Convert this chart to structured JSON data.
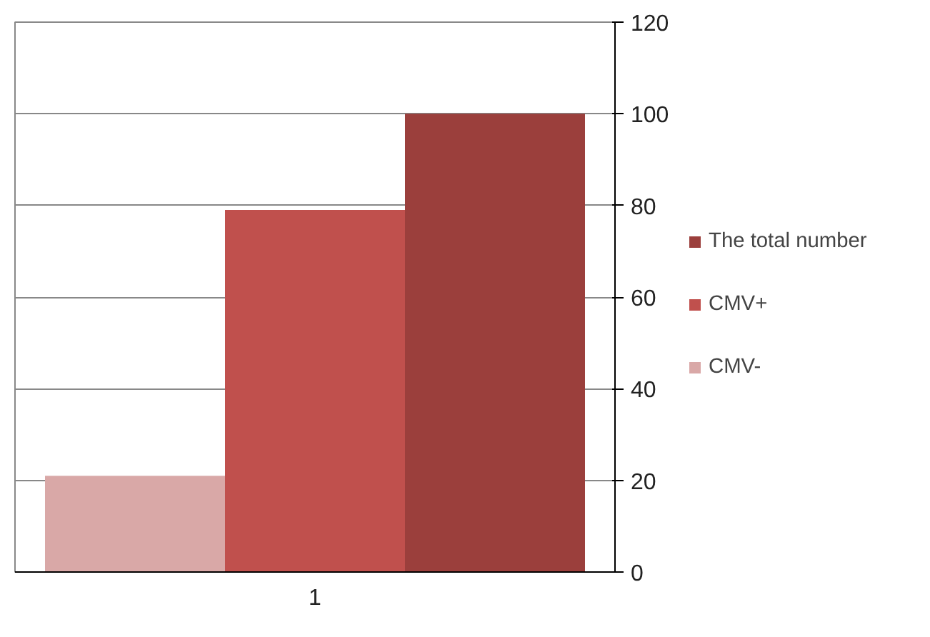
{
  "chart_data": {
    "type": "bar",
    "categories": [
      "1"
    ],
    "series": [
      {
        "name": "CMV-",
        "color": "#d9a8a7",
        "values": [
          21
        ]
      },
      {
        "name": "CMV+",
        "color": "#c0504d",
        "values": [
          79
        ]
      },
      {
        "name": "The total number",
        "color": "#9b3f3c",
        "values": [
          100
        ]
      }
    ],
    "ylim": [
      0,
      120
    ],
    "yticks": [
      0,
      20,
      40,
      60,
      80,
      100,
      120
    ],
    "grid": "y",
    "legend": "right"
  }
}
